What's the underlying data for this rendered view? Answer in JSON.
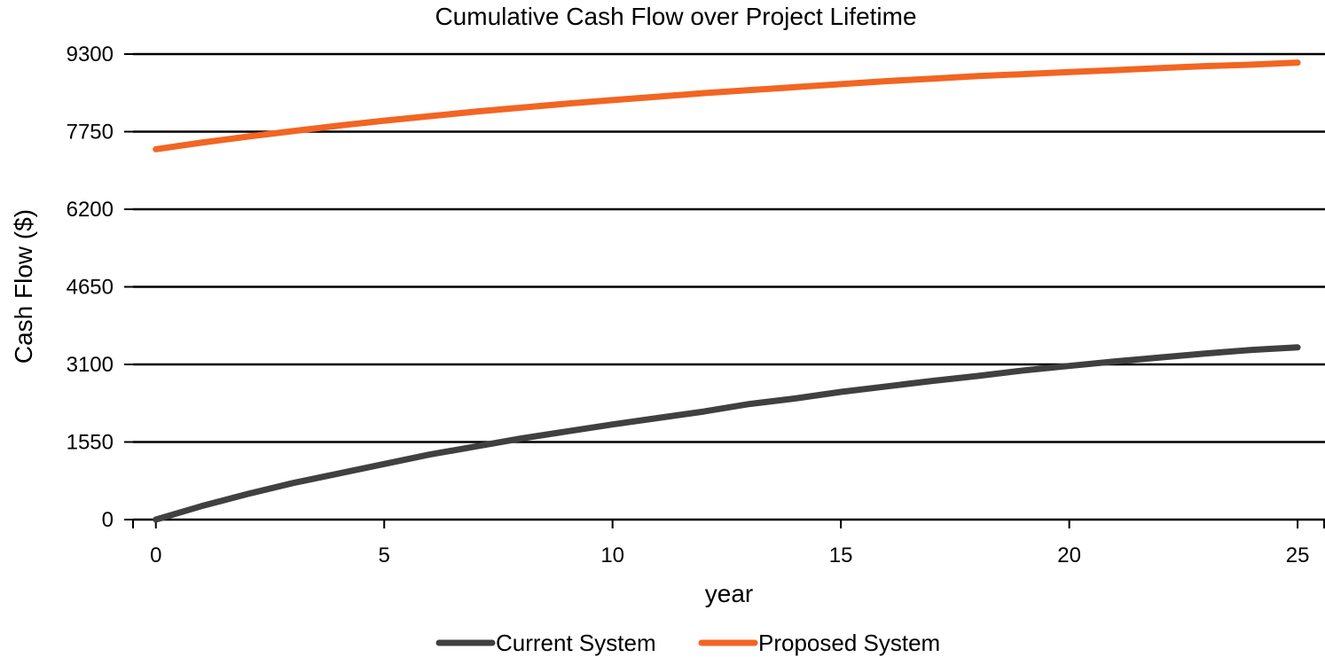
{
  "chart_data": {
    "type": "line",
    "title": "Cumulative Cash Flow over Project Lifetime",
    "xlabel": "year",
    "ylabel": "Cash Flow ($)",
    "xlim": [
      -0.5,
      25.6
    ],
    "ylim": [
      0,
      9300
    ],
    "x_ticks": [
      0,
      5,
      10,
      15,
      20,
      25
    ],
    "y_ticks": [
      0,
      1550,
      3100,
      4650,
      6200,
      7750,
      9300
    ],
    "grid": "horizontal",
    "legend": "bottom",
    "series": [
      {
        "name": "Current System",
        "color": "#404040",
        "x": [
          0,
          1,
          2,
          3,
          4,
          5,
          6,
          7,
          8,
          9,
          10,
          11,
          12,
          13,
          14,
          15,
          16,
          17,
          18,
          19,
          20,
          21,
          22,
          23,
          24,
          25
        ],
        "values": [
          0,
          270,
          510,
          730,
          920,
          1110,
          1300,
          1460,
          1620,
          1760,
          1900,
          2030,
          2160,
          2310,
          2420,
          2550,
          2660,
          2770,
          2870,
          2980,
          3070,
          3160,
          3240,
          3320,
          3390,
          3440
        ]
      },
      {
        "name": "Proposed System",
        "color": "#f26522",
        "x": [
          0,
          1,
          2,
          3,
          4,
          5,
          6,
          7,
          8,
          9,
          10,
          11,
          12,
          13,
          14,
          15,
          16,
          17,
          18,
          19,
          20,
          21,
          22,
          23,
          24,
          25
        ],
        "values": [
          7400,
          7530,
          7650,
          7760,
          7870,
          7970,
          8060,
          8150,
          8230,
          8310,
          8380,
          8450,
          8520,
          8580,
          8640,
          8700,
          8760,
          8810,
          8860,
          8900,
          8940,
          8980,
          9020,
          9060,
          9090,
          9130
        ]
      }
    ]
  }
}
